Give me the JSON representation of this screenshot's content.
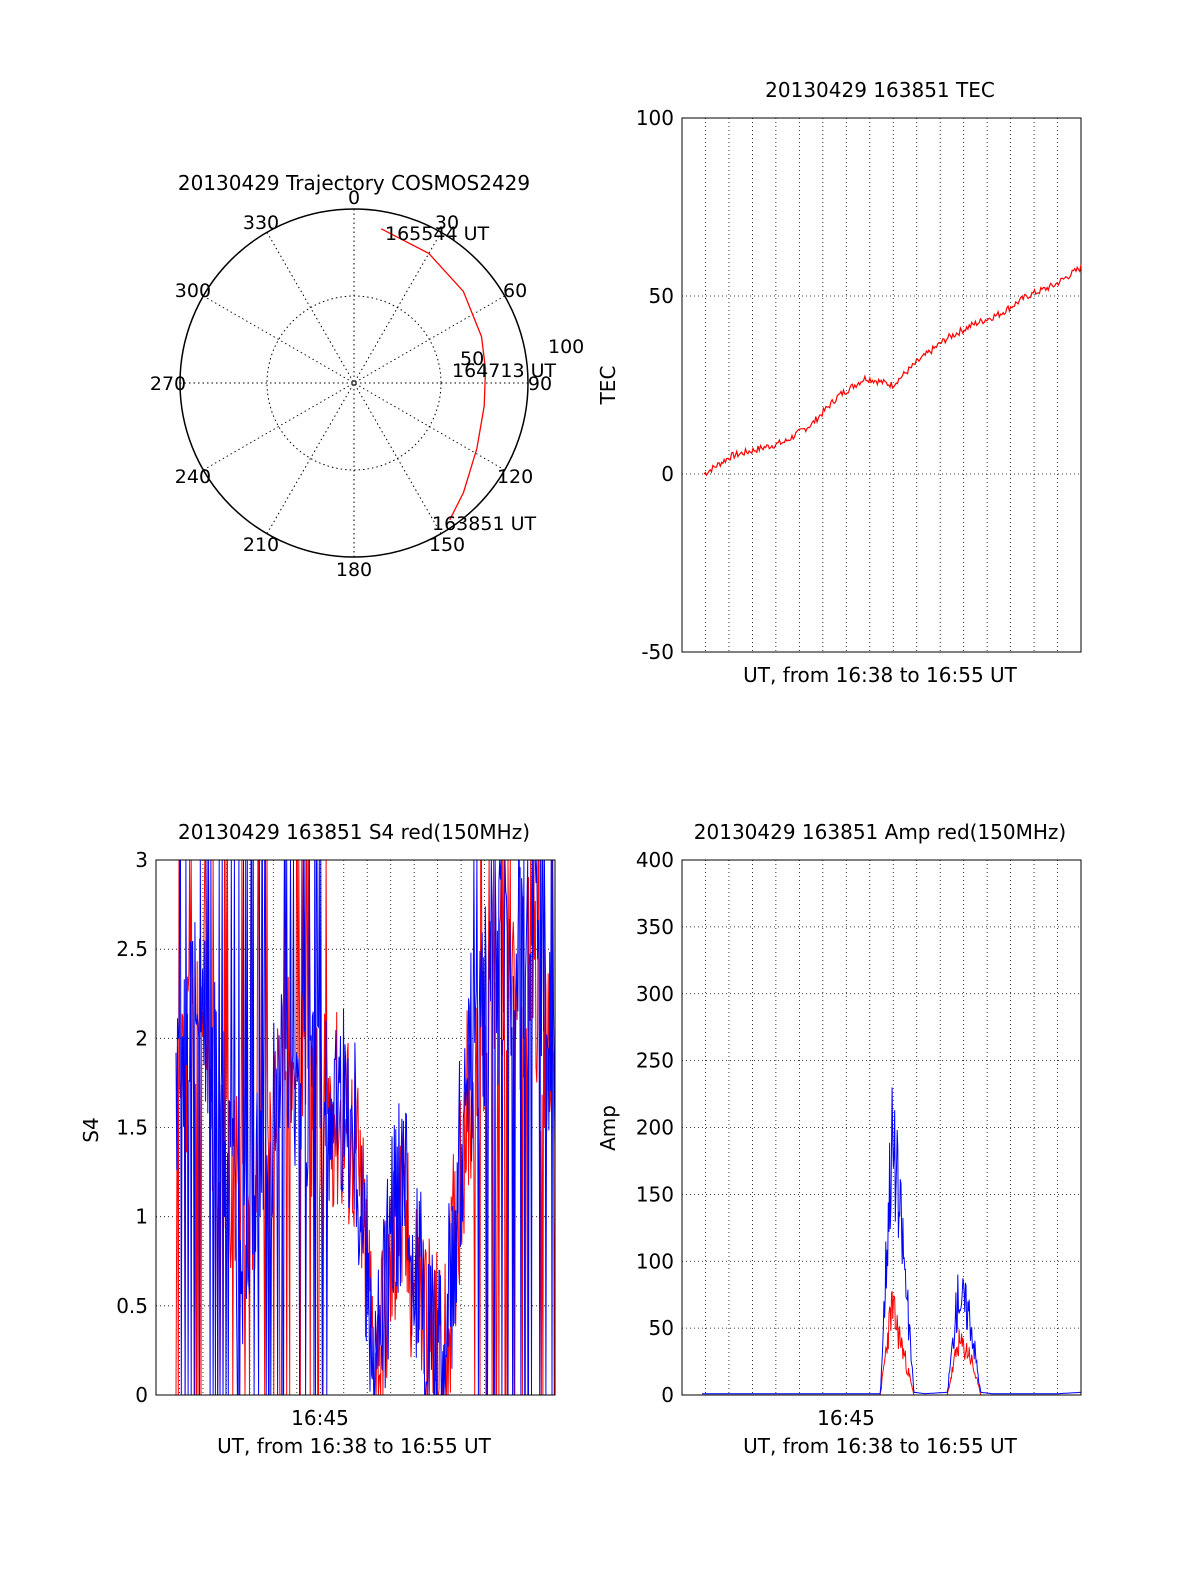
{
  "chart_data": [
    {
      "id": "trajectory",
      "type": "polar",
      "title": "20130429 Trajectory COSMOS2429",
      "azimuth_labels": [
        "0",
        "30",
        "60",
        "90",
        "120",
        "150",
        "180",
        "210",
        "240",
        "270",
        "300",
        "330"
      ],
      "ring_labels": [
        "50",
        "100"
      ],
      "elevation_max": 100,
      "points": [
        {
          "az": 10,
          "r": 90,
          "label": "165544 UT"
        },
        {
          "az": 30,
          "r": 86
        },
        {
          "az": 50,
          "r": 82
        },
        {
          "az": 70,
          "r": 78
        },
        {
          "az": 84,
          "r": 76,
          "label": "164713 UT"
        },
        {
          "az": 100,
          "r": 76
        },
        {
          "az": 118,
          "r": 80
        },
        {
          "az": 135,
          "r": 89
        },
        {
          "az": 145,
          "r": 96,
          "label": "163851 UT"
        }
      ],
      "colors": {
        "track": "#ff0000"
      }
    },
    {
      "id": "tec",
      "type": "line",
      "title": "20130429 163851 TEC",
      "xlabel": "UT, from 16:38 to 16:55 UT",
      "ylabel": "TEC",
      "ylim": [
        -50,
        100
      ],
      "yticks": [
        "-50",
        "0",
        "50",
        "100"
      ],
      "xlim_minutes": [
        16.85,
        17.0
      ],
      "x": [
        16.86,
        16.87,
        16.88,
        16.89,
        16.9,
        16.91,
        16.92,
        16.93,
        16.94,
        16.95,
        16.96,
        16.97,
        16.98,
        16.99,
        17.0
      ],
      "values": [
        0,
        5,
        7,
        9,
        14,
        22,
        27,
        25,
        32,
        38,
        42,
        45,
        50,
        53,
        58
      ],
      "series": [
        {
          "name": "TEC",
          "color": "#ff0000"
        }
      ]
    },
    {
      "id": "s4",
      "type": "line",
      "title": "20130429 163851 S4 red(150MHz)",
      "xlabel": "UT, from 16:38 to 16:55 UT",
      "ylabel": "S4",
      "ylim": [
        0,
        3
      ],
      "yticks": [
        "0",
        "0.5",
        "1",
        "1.5",
        "2",
        "2.5",
        "3"
      ],
      "xticks": [
        "16:45"
      ],
      "x_minutes": [
        0,
        1,
        2,
        3,
        4,
        5,
        6,
        7,
        8,
        9,
        10,
        11,
        12,
        13,
        14,
        15,
        16,
        17
      ],
      "series": [
        {
          "name": "red",
          "color": "#ff0000",
          "values": [
            1.6,
            2.2,
            1.4,
            1.0,
            1.5,
            1.8,
            1.5,
            1.6,
            1.4,
            0.1,
            1.0,
            0.5,
            0.1,
            1.6,
            2.0,
            2.2,
            2.4,
            1.5
          ]
        },
        {
          "name": "blue",
          "color": "#0000ff",
          "values": [
            1.5,
            2.4,
            1.6,
            0.8,
            1.4,
            2.0,
            1.6,
            1.7,
            1.5,
            0.1,
            1.2,
            0.6,
            0.1,
            1.8,
            2.2,
            2.5,
            2.6,
            1.7
          ]
        }
      ]
    },
    {
      "id": "amp",
      "type": "line",
      "title": "20130429 163851 Amp red(150MHz)",
      "xlabel": "UT, from 16:38 to 16:55 UT",
      "ylabel": "Amp",
      "ylim": [
        0,
        400
      ],
      "yticks": [
        "0",
        "50",
        "100",
        "150",
        "200",
        "250",
        "300",
        "350",
        "400"
      ],
      "xticks": [
        "16:45"
      ],
      "x_minutes": [
        0,
        1,
        2,
        3,
        4,
        5,
        6,
        7,
        8,
        8.5,
        9,
        9.5,
        10,
        11,
        11.5,
        12,
        12.5,
        13,
        14,
        15,
        16,
        17
      ],
      "series": [
        {
          "name": "red",
          "color": "#ff0000",
          "values": [
            0,
            0,
            0,
            0,
            0,
            0,
            0,
            0,
            0,
            85,
            45,
            0,
            0,
            0,
            50,
            40,
            0,
            0,
            0,
            0,
            0,
            0
          ]
        },
        {
          "name": "blue",
          "color": "#0000ff",
          "values": [
            1,
            1,
            1,
            1,
            1,
            1,
            1,
            1,
            1,
            250,
            150,
            2,
            1,
            2,
            100,
            80,
            2,
            1,
            1,
            1,
            1,
            2
          ]
        }
      ]
    }
  ]
}
